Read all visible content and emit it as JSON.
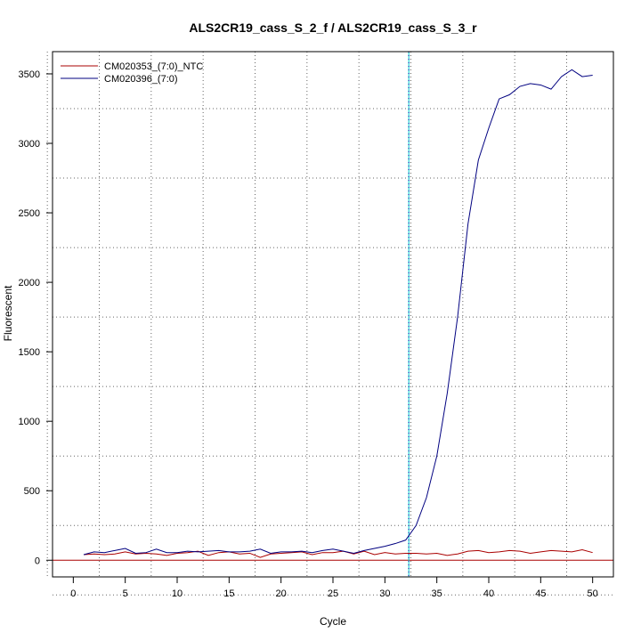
{
  "chart_data": {
    "type": "line",
    "title": "ALS2CR19_cass_S_2_f / ALS2CR19_cass_S_3_r",
    "xlabel": "Cycle",
    "ylabel": "Fluorescent",
    "xlim": [
      -2,
      52
    ],
    "ylim": [
      -120,
      3660
    ],
    "xticks": [
      0,
      5,
      10,
      15,
      20,
      25,
      30,
      35,
      40,
      45,
      50
    ],
    "yticks": [
      0,
      500,
      1000,
      1500,
      2000,
      2500,
      3000,
      3500
    ],
    "grid": true,
    "legend_position": "top-left",
    "threshold_cycle": 32.3,
    "threshold_color": "#00cccc",
    "baseline_color": "#aa0000",
    "x": [
      1,
      2,
      3,
      4,
      5,
      6,
      7,
      8,
      9,
      10,
      11,
      12,
      13,
      14,
      15,
      16,
      17,
      18,
      19,
      20,
      21,
      22,
      23,
      24,
      25,
      26,
      27,
      28,
      29,
      30,
      31,
      32,
      33,
      34,
      35,
      36,
      37,
      38,
      39,
      40,
      41,
      42,
      43,
      44,
      45,
      46,
      47,
      48,
      49,
      50
    ],
    "series": [
      {
        "name": "CM020353_(7:0)_NTC",
        "color": "#aa0000",
        "values": [
          40,
          45,
          40,
          45,
          60,
          45,
          50,
          45,
          35,
          50,
          55,
          65,
          35,
          55,
          60,
          45,
          50,
          20,
          45,
          50,
          55,
          60,
          40,
          55,
          55,
          65,
          45,
          65,
          40,
          55,
          45,
          50,
          50,
          45,
          50,
          35,
          45,
          65,
          70,
          55,
          60,
          70,
          65,
          50,
          60,
          70,
          65,
          60,
          75,
          55
        ]
      },
      {
        "name": "CM020396_(7:0)",
        "color": "#000080",
        "values": [
          40,
          60,
          55,
          70,
          85,
          50,
          55,
          80,
          55,
          55,
          65,
          60,
          65,
          70,
          60,
          60,
          65,
          80,
          50,
          60,
          60,
          65,
          55,
          70,
          80,
          65,
          50,
          70,
          85,
          100,
          120,
          145,
          250,
          450,
          750,
          1200,
          1750,
          2420,
          2880,
          3110,
          3320,
          3350,
          3410,
          3430,
          3420,
          3390,
          3480,
          3530,
          3480,
          3490
        ]
      }
    ]
  }
}
